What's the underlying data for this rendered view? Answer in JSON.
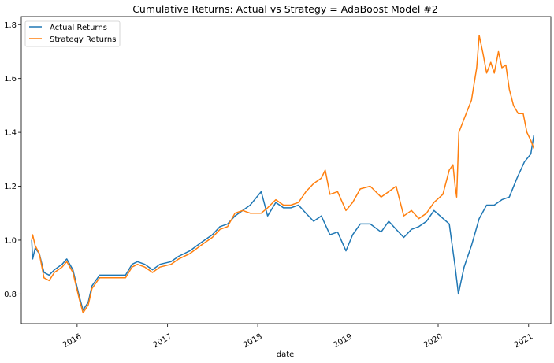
{
  "chart_data": {
    "type": "line",
    "title": "Cumulative Returns: Actual vs Strategy = AdaBoost Model #2",
    "xlabel": "date",
    "ylabel": "",
    "xlim": [
      "2015-05-20",
      "2021-04-01"
    ],
    "ylim": [
      0.69,
      1.83
    ],
    "grid": false,
    "legend_position": "upper-left",
    "x_ticks": [
      {
        "label": "2016",
        "date": "2016-01-01"
      },
      {
        "label": "2017",
        "date": "2017-01-01"
      },
      {
        "label": "2018",
        "date": "2018-01-01"
      },
      {
        "label": "2019",
        "date": "2019-01-01"
      },
      {
        "label": "2020",
        "date": "2020-01-01"
      },
      {
        "label": "2021",
        "date": "2021-01-01"
      }
    ],
    "y_ticks": [
      {
        "label": "0.8",
        "value": 0.8
      },
      {
        "label": "1.0",
        "value": 1.0
      },
      {
        "label": "1.2",
        "value": 1.2
      },
      {
        "label": "1.4",
        "value": 1.4
      },
      {
        "label": "1.6",
        "value": 1.6
      },
      {
        "label": "1.8",
        "value": 1.8
      }
    ],
    "series": [
      {
        "name": "Actual Returns",
        "color": "#1f77b4",
        "points": [
          [
            "2015-07-01",
            1.0
          ],
          [
            "2015-07-05",
            0.93
          ],
          [
            "2015-07-15",
            0.97
          ],
          [
            "2015-08-01",
            0.95
          ],
          [
            "2015-08-20",
            0.88
          ],
          [
            "2015-09-10",
            0.87
          ],
          [
            "2015-10-01",
            0.89
          ],
          [
            "2015-11-01",
            0.91
          ],
          [
            "2015-11-20",
            0.93
          ],
          [
            "2015-12-15",
            0.89
          ],
          [
            "2016-01-10",
            0.79
          ],
          [
            "2016-01-25",
            0.74
          ],
          [
            "2016-02-15",
            0.77
          ],
          [
            "2016-03-01",
            0.83
          ],
          [
            "2016-04-01",
            0.87
          ],
          [
            "2016-07-15",
            0.87
          ],
          [
            "2016-08-10",
            0.91
          ],
          [
            "2016-09-01",
            0.92
          ],
          [
            "2016-10-01",
            0.91
          ],
          [
            "2016-11-01",
            0.89
          ],
          [
            "2016-12-01",
            0.91
          ],
          [
            "2017-01-15",
            0.92
          ],
          [
            "2017-02-15",
            0.94
          ],
          [
            "2017-04-01",
            0.96
          ],
          [
            "2017-05-15",
            0.99
          ],
          [
            "2017-07-01",
            1.02
          ],
          [
            "2017-08-01",
            1.05
          ],
          [
            "2017-09-01",
            1.06
          ],
          [
            "2017-10-01",
            1.09
          ],
          [
            "2017-11-01",
            1.11
          ],
          [
            "2017-12-01",
            1.13
          ],
          [
            "2018-01-15",
            1.18
          ],
          [
            "2018-02-10",
            1.09
          ],
          [
            "2018-03-15",
            1.14
          ],
          [
            "2018-04-15",
            1.12
          ],
          [
            "2018-05-15",
            1.12
          ],
          [
            "2018-06-15",
            1.13
          ],
          [
            "2018-07-15",
            1.1
          ],
          [
            "2018-08-15",
            1.07
          ],
          [
            "2018-09-15",
            1.09
          ],
          [
            "2018-10-20",
            1.02
          ],
          [
            "2018-11-20",
            1.03
          ],
          [
            "2018-12-24",
            0.96
          ],
          [
            "2019-01-20",
            1.02
          ],
          [
            "2019-02-20",
            1.06
          ],
          [
            "2019-04-01",
            1.06
          ],
          [
            "2019-05-15",
            1.03
          ],
          [
            "2019-06-15",
            1.07
          ],
          [
            "2019-07-15",
            1.04
          ],
          [
            "2019-08-15",
            1.01
          ],
          [
            "2019-09-15",
            1.04
          ],
          [
            "2019-10-15",
            1.05
          ],
          [
            "2019-11-15",
            1.07
          ],
          [
            "2019-12-15",
            1.11
          ],
          [
            "2020-02-15",
            1.06
          ],
          [
            "2020-03-10",
            0.9
          ],
          [
            "2020-03-23",
            0.8
          ],
          [
            "2020-04-15",
            0.9
          ],
          [
            "2020-05-15",
            0.98
          ],
          [
            "2020-06-15",
            1.08
          ],
          [
            "2020-07-15",
            1.13
          ],
          [
            "2020-08-15",
            1.13
          ],
          [
            "2020-09-15",
            1.15
          ],
          [
            "2020-10-15",
            1.16
          ],
          [
            "2020-11-15",
            1.23
          ],
          [
            "2020-12-15",
            1.29
          ],
          [
            "2021-01-10",
            1.32
          ],
          [
            "2021-01-22",
            1.39
          ]
        ]
      },
      {
        "name": "Strategy Returns",
        "color": "#ff7f0e",
        "points": [
          [
            "2015-07-01",
            1.0
          ],
          [
            "2015-07-05",
            1.02
          ],
          [
            "2015-07-15",
            0.98
          ],
          [
            "2015-08-01",
            0.95
          ],
          [
            "2015-08-20",
            0.86
          ],
          [
            "2015-09-10",
            0.85
          ],
          [
            "2015-10-01",
            0.88
          ],
          [
            "2015-11-01",
            0.9
          ],
          [
            "2015-11-20",
            0.92
          ],
          [
            "2015-12-15",
            0.88
          ],
          [
            "2016-01-10",
            0.78
          ],
          [
            "2016-01-25",
            0.73
          ],
          [
            "2016-02-15",
            0.76
          ],
          [
            "2016-03-01",
            0.82
          ],
          [
            "2016-04-01",
            0.86
          ],
          [
            "2016-07-15",
            0.86
          ],
          [
            "2016-08-10",
            0.9
          ],
          [
            "2016-09-01",
            0.91
          ],
          [
            "2016-10-01",
            0.9
          ],
          [
            "2016-11-01",
            0.88
          ],
          [
            "2016-12-01",
            0.9
          ],
          [
            "2017-01-15",
            0.91
          ],
          [
            "2017-02-15",
            0.93
          ],
          [
            "2017-04-01",
            0.95
          ],
          [
            "2017-05-15",
            0.98
          ],
          [
            "2017-07-01",
            1.01
          ],
          [
            "2017-08-01",
            1.04
          ],
          [
            "2017-09-01",
            1.05
          ],
          [
            "2017-10-01",
            1.1
          ],
          [
            "2017-11-01",
            1.11
          ],
          [
            "2017-12-01",
            1.1
          ],
          [
            "2018-01-15",
            1.1
          ],
          [
            "2018-02-10",
            1.12
          ],
          [
            "2018-03-15",
            1.15
          ],
          [
            "2018-04-15",
            1.13
          ],
          [
            "2018-05-15",
            1.13
          ],
          [
            "2018-06-15",
            1.14
          ],
          [
            "2018-07-15",
            1.18
          ],
          [
            "2018-08-15",
            1.21
          ],
          [
            "2018-09-15",
            1.23
          ],
          [
            "2018-10-01",
            1.26
          ],
          [
            "2018-10-20",
            1.17
          ],
          [
            "2018-11-20",
            1.18
          ],
          [
            "2018-12-24",
            1.11
          ],
          [
            "2019-01-20",
            1.14
          ],
          [
            "2019-02-20",
            1.19
          ],
          [
            "2019-04-01",
            1.2
          ],
          [
            "2019-05-15",
            1.16
          ],
          [
            "2019-06-15",
            1.18
          ],
          [
            "2019-07-15",
            1.2
          ],
          [
            "2019-08-15",
            1.09
          ],
          [
            "2019-09-15",
            1.11
          ],
          [
            "2019-10-15",
            1.08
          ],
          [
            "2019-11-15",
            1.1
          ],
          [
            "2019-12-15",
            1.14
          ],
          [
            "2020-01-20",
            1.17
          ],
          [
            "2020-02-15",
            1.26
          ],
          [
            "2020-03-01",
            1.28
          ],
          [
            "2020-03-10",
            1.2
          ],
          [
            "2020-03-16",
            1.16
          ],
          [
            "2020-03-25",
            1.4
          ],
          [
            "2020-04-15",
            1.45
          ],
          [
            "2020-05-15",
            1.52
          ],
          [
            "2020-06-05",
            1.64
          ],
          [
            "2020-06-15",
            1.76
          ],
          [
            "2020-07-01",
            1.69
          ],
          [
            "2020-07-15",
            1.62
          ],
          [
            "2020-08-01",
            1.66
          ],
          [
            "2020-08-15",
            1.62
          ],
          [
            "2020-09-01",
            1.7
          ],
          [
            "2020-09-15",
            1.64
          ],
          [
            "2020-10-01",
            1.65
          ],
          [
            "2020-10-15",
            1.56
          ],
          [
            "2020-11-01",
            1.5
          ],
          [
            "2020-11-20",
            1.47
          ],
          [
            "2020-12-10",
            1.47
          ],
          [
            "2020-12-25",
            1.4
          ],
          [
            "2021-01-10",
            1.37
          ],
          [
            "2021-01-22",
            1.34
          ]
        ]
      }
    ]
  }
}
